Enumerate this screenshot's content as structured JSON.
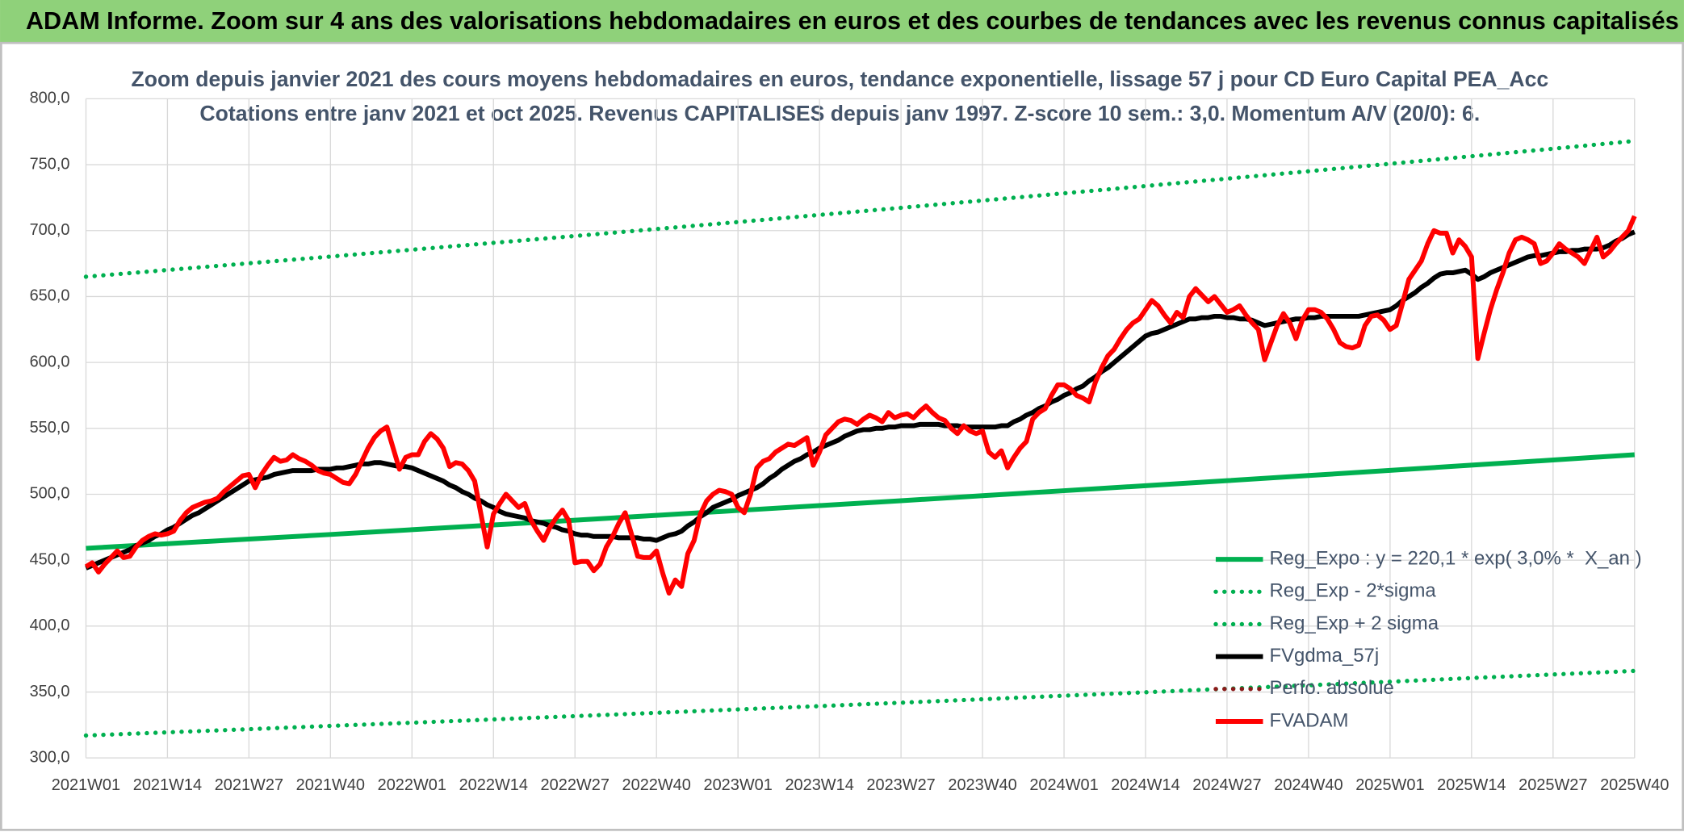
{
  "chart_data": {
    "type": "line",
    "title": "ADAM Informe. Zoom sur 4 ans des valorisations hebdomadaires en euros et des courbes de tendances avec les revenus connus capitalisés",
    "subtitle": [
      "Zoom depuis janvier 2021 des cours moyens hebdomadaires en euros, tendance exponentielle, lissage 57 j pour CD Euro Capital PEA_Acc",
      "Cotations entre janv 2021 et oct 2025. Revenus CAPITALISES depuis janv 1997. Z-score 10 sem.: 3,0. Momentum A/V (20/0): 6."
    ],
    "categories": [
      "2021W01",
      null,
      null,
      null,
      null,
      null,
      null,
      null,
      null,
      null,
      null,
      null,
      null,
      "2021W14",
      null,
      null,
      null,
      null,
      null,
      null,
      null,
      null,
      null,
      null,
      null,
      null,
      "2021W27",
      null,
      null,
      null,
      null,
      null,
      null,
      null,
      null,
      null,
      null,
      null,
      null,
      "2021W40",
      null,
      null,
      null,
      null,
      null,
      null,
      null,
      null,
      null,
      null,
      null,
      null,
      "2022W01",
      null,
      null,
      null,
      null,
      null,
      null,
      null,
      null,
      null,
      null,
      null,
      null,
      "2022W14",
      null,
      null,
      null,
      null,
      null,
      null,
      null,
      null,
      null,
      null,
      null,
      null,
      "2022W27",
      null,
      null,
      null,
      null,
      null,
      null,
      null,
      null,
      null,
      null,
      null,
      null,
      "2022W40",
      null,
      null,
      null,
      null,
      null,
      null,
      null,
      null,
      null,
      null,
      null,
      null,
      "2023W01",
      null,
      null,
      null,
      null,
      null,
      null,
      null,
      null,
      null,
      null,
      null,
      null,
      "2023W14",
      null,
      null,
      null,
      null,
      null,
      null,
      null,
      null,
      null,
      null,
      null,
      null,
      "2023W27",
      null,
      null,
      null,
      null,
      null,
      null,
      null,
      null,
      null,
      null,
      null,
      null,
      "2023W40",
      null,
      null,
      null,
      null,
      null,
      null,
      null,
      null,
      null,
      null,
      null,
      null,
      "2024W01",
      null,
      null,
      null,
      null,
      null,
      null,
      null,
      null,
      null,
      null,
      null,
      null,
      "2024W14",
      null,
      null,
      null,
      null,
      null,
      null,
      null,
      null,
      null,
      null,
      null,
      null,
      "2024W27",
      null,
      null,
      null,
      null,
      null,
      null,
      null,
      null,
      null,
      null,
      null,
      null,
      "2024W40",
      null,
      null,
      null,
      null,
      null,
      null,
      null,
      null,
      null,
      null,
      null,
      null,
      "2025W01",
      null,
      null,
      null,
      null,
      null,
      null,
      null,
      null,
      null,
      null,
      null,
      null,
      "2025W14",
      null,
      null,
      null,
      null,
      null,
      null,
      null,
      null,
      null,
      null,
      null,
      null,
      "2025W27",
      null,
      null,
      null,
      null,
      null,
      null,
      null,
      null,
      null,
      null,
      null,
      null,
      "2025W40"
    ],
    "series": [
      {
        "name": "Reg_Expo : y = 220,1 * exp( 3,0% *  X_an )",
        "color": "#00b050",
        "style": "solid",
        "x": [
          "2021W01",
          "2021W14",
          "2021W27",
          "2021W40",
          "2022W01",
          "2022W14",
          "2022W27",
          "2022W40",
          "2023W01",
          "2023W14",
          "2023W27",
          "2023W40",
          "2024W01",
          "2024W14",
          "2024W27",
          "2024W40",
          "2025W01",
          "2025W14",
          "2025W27",
          "2025W40"
        ],
        "values": [
          459.0,
          462.5,
          466.0,
          469.5,
          473.1,
          476.7,
          480.3,
          484.0,
          487.7,
          491.4,
          495.1,
          498.9,
          502.7,
          506.5,
          510.3,
          514.2,
          518.1,
          522.1,
          526.0,
          530.0
        ]
      },
      {
        "name": "Reg_Exp - 2*sigma",
        "color": "#00b050",
        "style": "dotted",
        "x": [
          "2021W01",
          "2021W14",
          "2021W27",
          "2021W40",
          "2022W01",
          "2022W14",
          "2022W27",
          "2022W40",
          "2023W01",
          "2023W14",
          "2023W27",
          "2023W40",
          "2024W01",
          "2024W14",
          "2024W27",
          "2024W40",
          "2025W01",
          "2025W14",
          "2025W27",
          "2025W40"
        ],
        "values": [
          317.0,
          319.4,
          321.8,
          324.3,
          326.7,
          329.2,
          331.7,
          334.2,
          336.8,
          339.3,
          341.9,
          344.5,
          347.2,
          349.8,
          352.5,
          355.1,
          357.8,
          360.6,
          363.3,
          366.0
        ]
      },
      {
        "name": "Reg_Exp + 2 sigma",
        "color": "#00b050",
        "style": "dotted",
        "x": [
          "2021W01",
          "2021W14",
          "2021W27",
          "2021W40",
          "2022W01",
          "2022W14",
          "2022W27",
          "2022W40",
          "2023W01",
          "2023W14",
          "2023W27",
          "2023W40",
          "2024W01",
          "2024W14",
          "2024W27",
          "2024W40",
          "2025W01",
          "2025W14",
          "2025W27",
          "2025W40"
        ],
        "values": [
          665.0,
          670.1,
          675.2,
          680.3,
          685.5,
          690.7,
          695.9,
          701.2,
          706.5,
          711.9,
          717.3,
          722.8,
          728.3,
          733.8,
          739.4,
          745.0,
          750.7,
          756.4,
          762.1,
          768.0
        ]
      },
      {
        "name": "FVgdma_57j",
        "color": "#000000",
        "style": "solid",
        "values": [
          444,
          446,
          448,
          450,
          452,
          454,
          456,
          458,
          461,
          463,
          465,
          468,
          470,
          473,
          475,
          478,
          481,
          484,
          486,
          489,
          492,
          495,
          498,
          501,
          504,
          507,
          510,
          511,
          512,
          513,
          515,
          516,
          517,
          518,
          518,
          518,
          518,
          519,
          519,
          519,
          520,
          520,
          521,
          522,
          523,
          523,
          524,
          524,
          523,
          522,
          521,
          521,
          520,
          518,
          516,
          514,
          512,
          510,
          507,
          505,
          502,
          500,
          497,
          495,
          492,
          490,
          487,
          485,
          484,
          483,
          482,
          480,
          479,
          478,
          476,
          475,
          473,
          472,
          470,
          469,
          469,
          468,
          468,
          468,
          468,
          467,
          467,
          467,
          467,
          466,
          466,
          465,
          467,
          469,
          470,
          472,
          476,
          479,
          483,
          486,
          490,
          492,
          494,
          496,
          499,
          501,
          503,
          505,
          508,
          512,
          515,
          519,
          522,
          525,
          527,
          530,
          532,
          535,
          537,
          539,
          541,
          544,
          546,
          548,
          549,
          549,
          550,
          550,
          551,
          551,
          552,
          552,
          552,
          553,
          553,
          553,
          553,
          552,
          552,
          552,
          551,
          551,
          551,
          551,
          551,
          551,
          552,
          552,
          555,
          557,
          560,
          562,
          565,
          567,
          570,
          572,
          575,
          577,
          580,
          582,
          586,
          589,
          593,
          596,
          600,
          604,
          608,
          612,
          616,
          620,
          622,
          623,
          625,
          627,
          629,
          631,
          633,
          633,
          634,
          634,
          635,
          635,
          634,
          634,
          633,
          633,
          632,
          630,
          628,
          629,
          630,
          631,
          632,
          633,
          633,
          634,
          634,
          635,
          635,
          635,
          635,
          635,
          635,
          635,
          636,
          637,
          638,
          639,
          640,
          643,
          647,
          650,
          653,
          657,
          660,
          664,
          667,
          668,
          668,
          669,
          670,
          667,
          663,
          665,
          668,
          670,
          672,
          674,
          676,
          678,
          680,
          681,
          681,
          682,
          683,
          684,
          684,
          685,
          685,
          686,
          686,
          686,
          687,
          689,
          692,
          694,
          697,
          699
        ]
      },
      {
        "name": "Perfo. absolue",
        "color": "#8b1a1a",
        "style": "dotted"
      },
      {
        "name": "FVADAM",
        "color": "#ff0000",
        "style": "solid",
        "values": [
          445,
          448,
          441,
          447,
          452,
          457,
          452,
          453,
          460,
          465,
          468,
          470,
          469,
          470,
          472,
          480,
          486,
          490,
          492,
          494,
          495,
          497,
          502,
          506,
          510,
          514,
          515,
          505,
          515,
          522,
          528,
          525,
          526,
          530,
          527,
          525,
          522,
          518,
          516,
          515,
          512,
          509,
          508,
          515,
          525,
          535,
          543,
          548,
          551,
          535,
          519,
          528,
          530,
          530,
          540,
          546,
          542,
          535,
          521,
          524,
          523,
          518,
          510,
          485,
          460,
          485,
          493,
          500,
          495,
          490,
          493,
          480,
          472,
          465,
          475,
          482,
          488,
          480,
          448,
          449,
          449,
          442,
          447,
          460,
          468,
          478,
          486,
          470,
          453,
          452,
          452,
          457,
          440,
          425,
          435,
          430,
          455,
          465,
          485,
          495,
          500,
          503,
          502,
          500,
          490,
          486,
          500,
          520,
          525,
          527,
          532,
          535,
          538,
          537,
          540,
          543,
          522,
          532,
          545,
          550,
          555,
          557,
          556,
          553,
          557,
          560,
          558,
          555,
          562,
          558,
          560,
          561,
          558,
          563,
          567,
          562,
          558,
          556,
          550,
          546,
          552,
          548,
          546,
          548,
          532,
          528,
          533,
          520,
          528,
          535,
          540,
          557,
          562,
          565,
          575,
          583,
          583,
          580,
          575,
          573,
          570,
          585,
          596,
          605,
          610,
          618,
          625,
          630,
          633,
          640,
          647,
          643,
          636,
          630,
          638,
          634,
          650,
          656,
          651,
          646,
          650,
          644,
          638,
          640,
          643,
          636,
          630,
          625,
          602,
          615,
          628,
          637,
          630,
          618,
          632,
          640,
          640,
          638,
          633,
          625,
          615,
          612,
          611,
          613,
          628,
          635,
          636,
          632,
          625,
          628,
          645,
          663,
          670,
          677,
          690,
          700,
          698,
          698,
          683,
          693,
          688,
          680,
          603,
          622,
          640,
          655,
          668,
          683,
          693,
          695,
          693,
          690,
          675,
          677,
          683,
          690,
          686,
          683,
          680,
          675,
          685,
          695,
          680,
          684,
          690,
          695,
          700,
          711
        ]
      }
    ],
    "ylim": [
      300,
      800
    ],
    "yticks": [
      {
        "value": 300,
        "label": "300,0"
      },
      {
        "value": 350,
        "label": "350,0"
      },
      {
        "value": 400,
        "label": "400,0"
      },
      {
        "value": 450,
        "label": "450,0"
      },
      {
        "value": 500,
        "label": "500,0"
      },
      {
        "value": 550,
        "label": "550,0"
      },
      {
        "value": 600,
        "label": "600,0"
      },
      {
        "value": 650,
        "label": "650,0"
      },
      {
        "value": 700,
        "label": "700,0"
      },
      {
        "value": 750,
        "label": "750,0"
      },
      {
        "value": 800,
        "label": "800,0"
      }
    ],
    "grid": true,
    "legend": "lower right"
  }
}
